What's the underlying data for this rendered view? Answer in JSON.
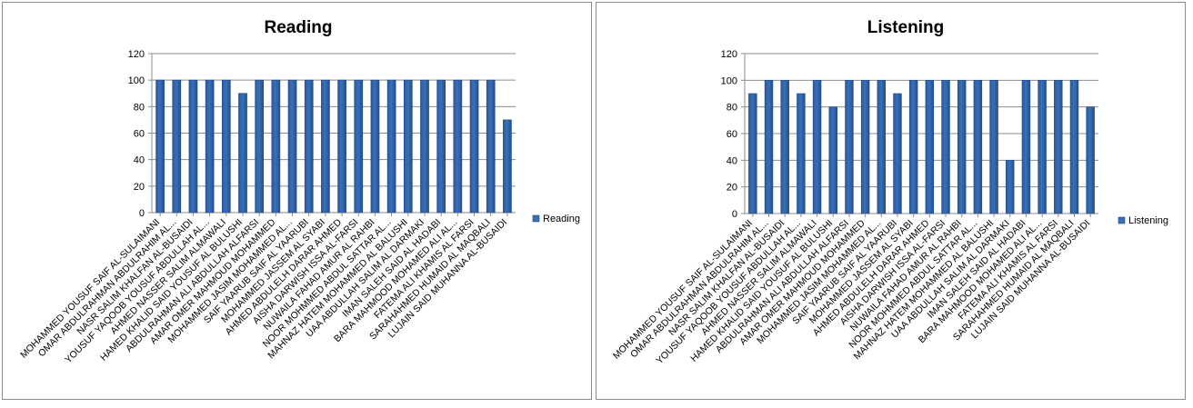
{
  "chart_data": [
    {
      "type": "bar",
      "title": "Reading",
      "xlabel": "",
      "ylabel": "",
      "ylim": [
        0,
        120
      ],
      "yticks": [
        0,
        20,
        40,
        60,
        80,
        100,
        120
      ],
      "grid": true,
      "legend_position": "right",
      "series_color": "#3a6fb8",
      "categories": [
        "MOHAMMED YOUSUF SAIF  AL-SULAIMANI",
        "OMAR ABDULRAHMAN ABDULRAHIM AL...",
        "NASR SALIM KHALFAN AL-BUSAIDI",
        "YOUSUF YAQOOB YOUSUF ABDULLAH AL...",
        "AHMED NASSER SALIM ALMAWALI",
        "HAMED KHALID SAID YOUSUF AL BULUSHI",
        "ABDULRAHMAN ALI ABDULLAH ALFARSI",
        "AMAR OMER MAHMOUD MOHAMMED",
        "MOHAMMED JASIM MOHAMMED AL...",
        "SAIF YAARUB SAIF AL YAARUBI",
        "MOHAMMED JASSEM AL SYABI",
        "AHMED ABDULELH DARAR AHMED",
        "AISHA DARWISH ISSA AL-FARSI",
        "NUWAILA FAHAD AMUR AL RAHBI",
        "NOOR MOHMMED ABDUL SATTAR  AL...",
        "MAHNAZ HATEM MOHAMMED AL BALUSHI",
        "UAA ABDULLAH SALIM AL DARMAKI",
        "IMAN SALEH SAID AL HADABI",
        "BARA MAHMOOD MOHAMED ALI AL...",
        "FATEMA ALI KHAMIS AL FARSI",
        "SARAHAHMED HUMAID AL MAQBALI",
        "LUJAIN SAID MUHANNA AL-BUSAIDI"
      ],
      "series": [
        {
          "name": "Reading",
          "values": [
            100,
            100,
            100,
            100,
            100,
            90,
            100,
            100,
            100,
            100,
            100,
            100,
            100,
            100,
            100,
            100,
            100,
            100,
            100,
            100,
            100,
            70
          ]
        }
      ]
    },
    {
      "type": "bar",
      "title": "Listening",
      "xlabel": "",
      "ylabel": "",
      "ylim": [
        0,
        120
      ],
      "yticks": [
        0,
        20,
        40,
        60,
        80,
        100,
        120
      ],
      "grid": true,
      "legend_position": "right",
      "series_color": "#3a6fb8",
      "categories": [
        "MOHAMMED YOUSUF SAIF  AL-SULAIMANI",
        "OMAR ABDULRAHMAN ABDULRAHIM AL...",
        "NASR SALIM KHALFAN AL-BUSAIDI",
        "YOUSUF YAQOOB YOUSUF ABDULLAH AL...",
        "AHMED NASSER SALIM ALMAWALI",
        "HAMED KHALID SAID YOUSUF AL BULUSHI",
        "ABDULRAHMAN ALI ABDULLAH ALFARSI",
        "AMAR OMER MAHMOUD MOHAMMED",
        "MOHAMMED JASIM MOHAMMED AL...",
        "SAIF YAARUB SAIF AL YAARUBI",
        "MOHAMMED JASSEM AL SYABI",
        "AHMED ABDULELH DARAR AHMED",
        "AISHA DARWISH ISSA AL-FARSI",
        "NUWAILA FAHAD AMUR AL RAHBI",
        "NOOR MOHMMED ABDUL SATTAR  AL...",
        "MAHNAZ HATEM MOHAMMED AL BALUSHI",
        "UAA ABDULLAH SALIM AL DARMAKI",
        "IMAN SALEH SAID AL HADABI",
        "BARA MAHMOOD MOHAMED ALI AL...",
        "FATEMA ALI KHAMIS AL FARSI",
        "SARAHAHMED HUMAID AL MAQBALI",
        "LUJAIN SAID MUHANNA AL-BUSAIDI"
      ],
      "series": [
        {
          "name": "Listening",
          "values": [
            90,
            100,
            100,
            90,
            100,
            80,
            100,
            100,
            100,
            90,
            100,
            100,
            100,
            100,
            100,
            100,
            40,
            100,
            100,
            100,
            100,
            80
          ]
        }
      ]
    }
  ]
}
